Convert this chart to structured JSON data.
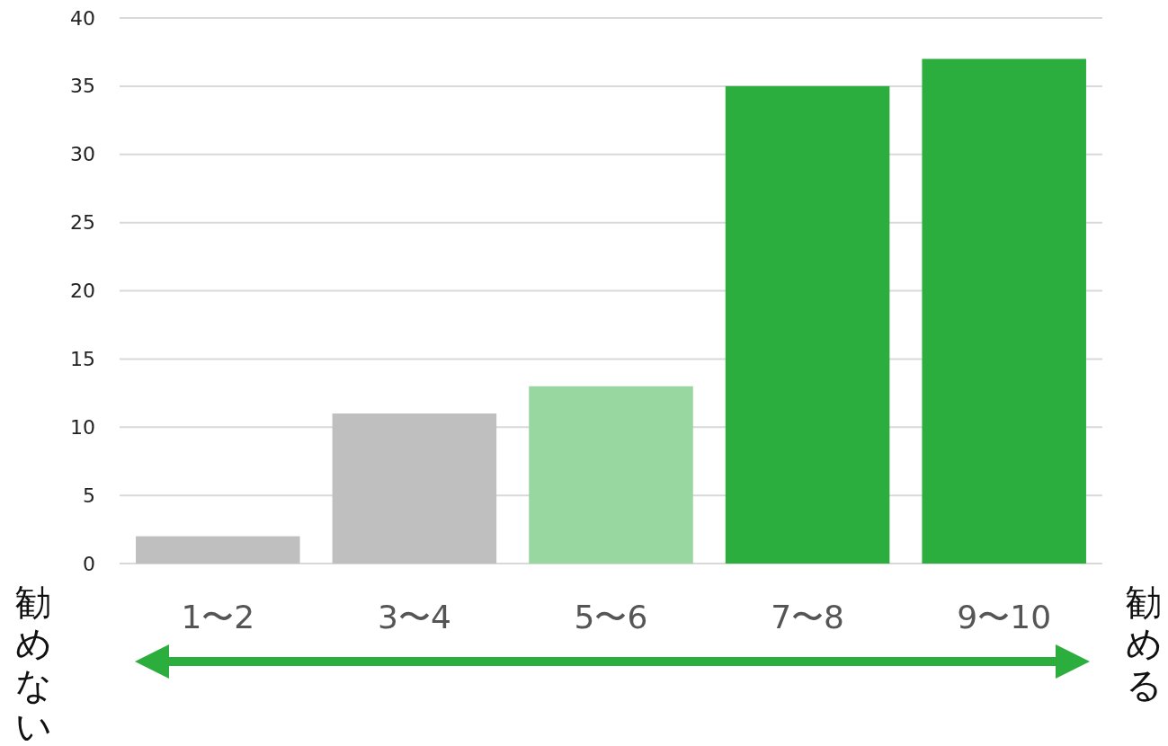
{
  "chart_data": {
    "type": "bar",
    "categories": [
      "1〜2",
      "3〜4",
      "5〜6",
      "7〜8",
      "9〜10"
    ],
    "values": [
      2,
      11,
      13,
      35,
      37
    ],
    "colors": [
      "#bfbfbf",
      "#bfbfbf",
      "#98d8a0",
      "#2cae3f",
      "#2cae3f"
    ],
    "ylim": [
      0,
      40
    ],
    "yticks": [
      0,
      5,
      10,
      15,
      20,
      25,
      30,
      35,
      40
    ],
    "grid": "y",
    "annotations": [
      "勧めない",
      "勧める"
    ]
  }
}
